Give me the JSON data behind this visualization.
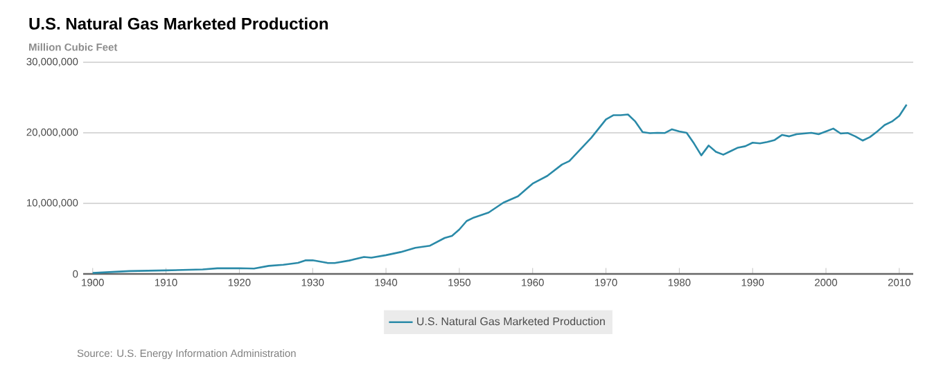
{
  "chart_data": {
    "type": "line",
    "title": "U.S. Natural Gas Marketed Production",
    "ylabel": "Million Cubic Feet",
    "annotations": [
      "Source: U.S. Energy Information Administration"
    ],
    "x": [
      1900,
      1905,
      1910,
      1915,
      1917,
      1920,
      1922,
      1924,
      1926,
      1928,
      1929,
      1930,
      1932,
      1933,
      1935,
      1937,
      1938,
      1940,
      1942,
      1944,
      1946,
      1948,
      1949,
      1950,
      1951,
      1952,
      1954,
      1956,
      1958,
      1960,
      1962,
      1964,
      1965,
      1967,
      1968,
      1970,
      1971,
      1972,
      1973,
      1974,
      1975,
      1976,
      1977,
      1978,
      1979,
      1980,
      1981,
      1982,
      1983,
      1984,
      1985,
      1986,
      1987,
      1988,
      1989,
      1990,
      1991,
      1992,
      1993,
      1994,
      1995,
      1996,
      1997,
      1998,
      1999,
      2000,
      2001,
      2002,
      2003,
      2004,
      2005,
      2006,
      2007,
      2008,
      2009,
      2010,
      2011
    ],
    "series": [
      {
        "name": "U.S. Natural Gas Marketed Production",
        "color": "#2a8aa8",
        "values": [
          130000,
          400000,
          500000,
          630000,
          800000,
          810000,
          760000,
          1140000,
          1300000,
          1570000,
          1920000,
          1940000,
          1560000,
          1550000,
          1900000,
          2400000,
          2300000,
          2660000,
          3100000,
          3700000,
          4000000,
          5100000,
          5400000,
          6300000,
          7500000,
          8000000,
          8700000,
          10100000,
          11000000,
          12800000,
          13900000,
          15500000,
          16000000,
          18200000,
          19300000,
          21900000,
          22500000,
          22500000,
          22600000,
          21600000,
          20100000,
          19950000,
          20000000,
          19970000,
          20500000,
          20200000,
          20000000,
          18500000,
          16800000,
          18200000,
          17300000,
          16900000,
          17400000,
          17900000,
          18100000,
          18600000,
          18500000,
          18700000,
          18980000,
          19700000,
          19500000,
          19800000,
          19900000,
          20000000,
          19800000,
          20200000,
          20600000,
          19900000,
          19970000,
          19500000,
          18900000,
          19400000,
          20200000,
          21100000,
          21600000,
          22400000,
          24000000
        ]
      }
    ],
    "xlim": [
      1898.7,
      2011.9
    ],
    "ylim": [
      0,
      30000000
    ],
    "xticks": [
      1900,
      1910,
      1920,
      1930,
      1940,
      1950,
      1960,
      1970,
      1980,
      1990,
      2000,
      2010
    ],
    "yticks": [
      0,
      {
        "value": 10000000,
        "label": "10,000,000"
      },
      {
        "value": 20000000,
        "label": "20,000,000"
      },
      {
        "value": 30000000,
        "label": "30,000,000"
      }
    ],
    "grid": "y",
    "legend": "bottom",
    "marker": "none",
    "line_style": "solid"
  }
}
